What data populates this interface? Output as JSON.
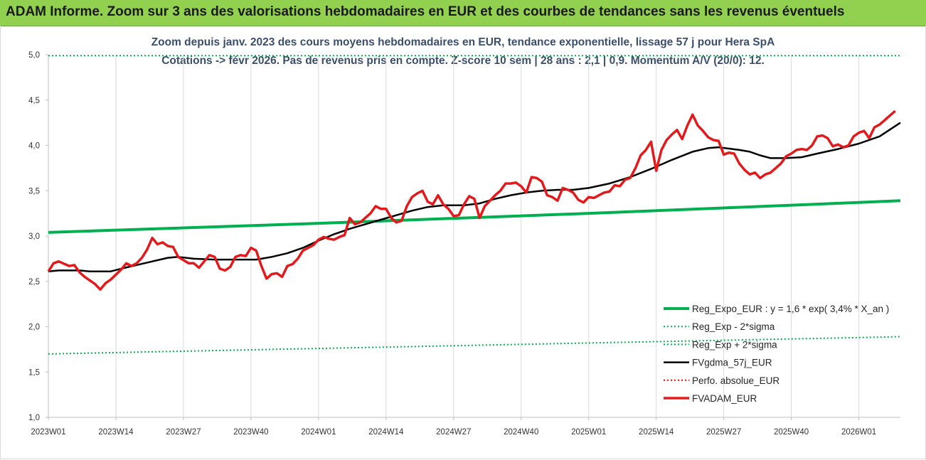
{
  "banner": {
    "title": "ADAM Informe. Zoom sur 3 ans des valorisations hebdomadaires en EUR et des courbes de tendances sans les revenus éventuels"
  },
  "colors": {
    "banner_bg": "#92d050",
    "reg_expo": "#00b050",
    "sigma": "#00b050",
    "mma": "#000000",
    "perfo": "#ff0000",
    "fvadam": "#e31a1c"
  },
  "chart_data": {
    "type": "line",
    "title_lines": [
      "Zoom depuis janv. 2023 des cours moyens hebdomadaires en EUR, tendance exponentielle, lissage 57 j pour Hera SpA",
      "Cotations -> févr 2026. Pas de revenus pris en compte. Z-score 10 sem | 28 ans : 2,1 | 0,9. Momentum A/V (20/0): 12."
    ],
    "x_tick_labels": [
      "2023W01",
      "2023W14",
      "2023W27",
      "2023W40",
      "2024W01",
      "2024W14",
      "2024W27",
      "2024W40",
      "2025W01",
      "2025W14",
      "2025W27",
      "2025W40",
      "2026W01"
    ],
    "x_tick_weeks": [
      0,
      13,
      26,
      39,
      52,
      65,
      78,
      91,
      104,
      117,
      130,
      143,
      156
    ],
    "x_range_weeks": [
      0,
      164
    ],
    "y_tick_labels": [
      "1,0",
      "1,5",
      "2,0",
      "2,5",
      "3,0",
      "3,5",
      "4,0",
      "4,5",
      "5,0"
    ],
    "ylim": [
      1.0,
      5.0
    ],
    "y_step": 0.5,
    "legend": [
      {
        "label": "Reg_Expo_EUR : y = 1,6 * exp( 3,4% *  X_an )",
        "style": "solid-thick-green"
      },
      {
        "label": "Reg_Exp - 2*sigma",
        "style": "dotted-green"
      },
      {
        "label": "Reg_Exp + 2*sigma",
        "style": "dotted-green"
      },
      {
        "label": "FVgdma_57j_EUR",
        "style": "solid-black"
      },
      {
        "label": "Perfo. absolue_EUR",
        "style": "dotted-red"
      },
      {
        "label": "FVADAM_EUR",
        "style": "solid-thick-red"
      }
    ],
    "series": [
      {
        "name": "Reg_Expo_EUR : y = 1,6 * exp( 3,4% *  X_an )",
        "color": "#00b050",
        "dash": "solid",
        "width": 4,
        "points": [
          [
            0,
            3.04
          ],
          [
            52,
            3.14
          ],
          [
            104,
            3.25
          ],
          [
            156,
            3.37
          ],
          [
            164,
            3.39
          ]
        ]
      },
      {
        "name": "Reg_Exp - 2*sigma",
        "color": "#00b050",
        "dash": "dotted",
        "width": 2,
        "points": [
          [
            0,
            1.7
          ],
          [
            52,
            1.76
          ],
          [
            104,
            1.82
          ],
          [
            156,
            1.88
          ],
          [
            164,
            1.89
          ]
        ]
      },
      {
        "name": "Reg_Exp + 2*sigma",
        "color": "#00b050",
        "dash": "dotted",
        "width": 2,
        "points": [
          [
            0,
            4.99
          ],
          [
            164,
            4.99
          ]
        ]
      },
      {
        "name": "FVgdma_57j_EUR",
        "color": "#000000",
        "dash": "solid",
        "width": 2.5,
        "points": [
          [
            0,
            2.61
          ],
          [
            2,
            2.62
          ],
          [
            6,
            2.62
          ],
          [
            8,
            2.61
          ],
          [
            12,
            2.61
          ],
          [
            14,
            2.64
          ],
          [
            17,
            2.68
          ],
          [
            20,
            2.72
          ],
          [
            23,
            2.76
          ],
          [
            25,
            2.77
          ],
          [
            28,
            2.75
          ],
          [
            32,
            2.74
          ],
          [
            36,
            2.74
          ],
          [
            40,
            2.74
          ],
          [
            43,
            2.77
          ],
          [
            46,
            2.81
          ],
          [
            49,
            2.87
          ],
          [
            52,
            2.95
          ],
          [
            55,
            3.02
          ],
          [
            58,
            3.08
          ],
          [
            61,
            3.13
          ],
          [
            64,
            3.18
          ],
          [
            67,
            3.23
          ],
          [
            70,
            3.28
          ],
          [
            73,
            3.32
          ],
          [
            76,
            3.34
          ],
          [
            80,
            3.34
          ],
          [
            83,
            3.36
          ],
          [
            86,
            3.41
          ],
          [
            89,
            3.45
          ],
          [
            92,
            3.48
          ],
          [
            95,
            3.5
          ],
          [
            98,
            3.51
          ],
          [
            101,
            3.51
          ],
          [
            104,
            3.53
          ],
          [
            108,
            3.58
          ],
          [
            112,
            3.65
          ],
          [
            116,
            3.74
          ],
          [
            120,
            3.84
          ],
          [
            124,
            3.93
          ],
          [
            127,
            3.97
          ],
          [
            129,
            3.98
          ],
          [
            133,
            3.95
          ],
          [
            135,
            3.93
          ],
          [
            137,
            3.89
          ],
          [
            139,
            3.86
          ],
          [
            142,
            3.86
          ],
          [
            145,
            3.87
          ],
          [
            148,
            3.91
          ],
          [
            152,
            3.96
          ],
          [
            156,
            4.02
          ],
          [
            160,
            4.1
          ],
          [
            164,
            4.25
          ]
        ]
      },
      {
        "name": "FVADAM_EUR",
        "color": "#e31a1c",
        "dash": "solid",
        "width": 3.5,
        "points": [
          [
            0,
            2.61
          ],
          [
            1,
            2.7
          ],
          [
            2,
            2.72
          ],
          [
            4,
            2.67
          ],
          [
            5,
            2.68
          ],
          [
            6,
            2.6
          ],
          [
            7,
            2.55
          ],
          [
            9,
            2.47
          ],
          [
            10,
            2.41
          ],
          [
            11,
            2.48
          ],
          [
            12,
            2.52
          ],
          [
            14,
            2.63
          ],
          [
            15,
            2.7
          ],
          [
            16,
            2.67
          ],
          [
            17,
            2.7
          ],
          [
            18,
            2.76
          ],
          [
            19,
            2.85
          ],
          [
            20,
            2.98
          ],
          [
            21,
            2.91
          ],
          [
            22,
            2.93
          ],
          [
            23,
            2.89
          ],
          [
            24,
            2.88
          ],
          [
            25,
            2.77
          ],
          [
            27,
            2.7
          ],
          [
            28,
            2.7
          ],
          [
            29,
            2.65
          ],
          [
            30,
            2.72
          ],
          [
            31,
            2.79
          ],
          [
            32,
            2.77
          ],
          [
            33,
            2.64
          ],
          [
            34,
            2.62
          ],
          [
            35,
            2.66
          ],
          [
            36,
            2.77
          ],
          [
            37,
            2.79
          ],
          [
            38,
            2.78
          ],
          [
            39,
            2.87
          ],
          [
            40,
            2.84
          ],
          [
            41,
            2.67
          ],
          [
            42,
            2.53
          ],
          [
            43,
            2.58
          ],
          [
            44,
            2.59
          ],
          [
            45,
            2.55
          ],
          [
            46,
            2.67
          ],
          [
            47,
            2.69
          ],
          [
            48,
            2.75
          ],
          [
            49,
            2.84
          ],
          [
            51,
            2.9
          ],
          [
            52,
            2.96
          ],
          [
            53,
            2.99
          ],
          [
            54,
            2.97
          ],
          [
            55,
            2.96
          ],
          [
            56,
            2.99
          ],
          [
            57,
            3.01
          ],
          [
            58,
            3.2
          ],
          [
            59,
            3.13
          ],
          [
            60,
            3.15
          ],
          [
            61,
            3.2
          ],
          [
            62,
            3.25
          ],
          [
            63,
            3.33
          ],
          [
            64,
            3.3
          ],
          [
            65,
            3.3
          ],
          [
            66,
            3.2
          ],
          [
            67,
            3.15
          ],
          [
            68,
            3.17
          ],
          [
            69,
            3.33
          ],
          [
            70,
            3.43
          ],
          [
            71,
            3.47
          ],
          [
            72,
            3.5
          ],
          [
            73,
            3.38
          ],
          [
            74,
            3.35
          ],
          [
            75,
            3.45
          ],
          [
            76,
            3.35
          ],
          [
            77,
            3.3
          ],
          [
            78,
            3.22
          ],
          [
            79,
            3.23
          ],
          [
            80,
            3.35
          ],
          [
            81,
            3.44
          ],
          [
            82,
            3.41
          ],
          [
            83,
            3.2
          ],
          [
            84,
            3.33
          ],
          [
            85,
            3.39
          ],
          [
            86,
            3.45
          ],
          [
            87,
            3.5
          ],
          [
            88,
            3.58
          ],
          [
            89,
            3.58
          ],
          [
            90,
            3.59
          ],
          [
            91,
            3.55
          ],
          [
            92,
            3.48
          ],
          [
            93,
            3.65
          ],
          [
            94,
            3.64
          ],
          [
            95,
            3.6
          ],
          [
            96,
            3.45
          ],
          [
            97,
            3.43
          ],
          [
            98,
            3.39
          ],
          [
            99,
            3.53
          ],
          [
            100,
            3.51
          ],
          [
            101,
            3.48
          ],
          [
            102,
            3.4
          ],
          [
            103,
            3.37
          ],
          [
            104,
            3.43
          ],
          [
            105,
            3.42
          ],
          [
            106,
            3.45
          ],
          [
            107,
            3.48
          ],
          [
            108,
            3.49
          ],
          [
            109,
            3.56
          ],
          [
            110,
            3.55
          ],
          [
            111,
            3.62
          ],
          [
            112,
            3.64
          ],
          [
            113,
            3.75
          ],
          [
            114,
            3.89
          ],
          [
            115,
            3.95
          ],
          [
            116,
            4.04
          ],
          [
            117,
            3.72
          ],
          [
            118,
            3.95
          ],
          [
            119,
            4.06
          ],
          [
            120,
            4.12
          ],
          [
            121,
            4.17
          ],
          [
            122,
            4.07
          ],
          [
            123,
            4.22
          ],
          [
            124,
            4.34
          ],
          [
            125,
            4.22
          ],
          [
            126,
            4.16
          ],
          [
            127,
            4.09
          ],
          [
            128,
            4.06
          ],
          [
            129,
            4.05
          ],
          [
            130,
            3.9
          ],
          [
            131,
            3.92
          ],
          [
            132,
            3.91
          ],
          [
            133,
            3.8
          ],
          [
            134,
            3.73
          ],
          [
            135,
            3.68
          ],
          [
            136,
            3.7
          ],
          [
            137,
            3.64
          ],
          [
            138,
            3.68
          ],
          [
            139,
            3.7
          ],
          [
            140,
            3.75
          ],
          [
            141,
            3.8
          ],
          [
            142,
            3.88
          ],
          [
            143,
            3.91
          ],
          [
            144,
            3.95
          ],
          [
            145,
            3.96
          ],
          [
            146,
            3.95
          ],
          [
            147,
            4.0
          ],
          [
            148,
            4.1
          ],
          [
            149,
            4.11
          ],
          [
            150,
            4.08
          ],
          [
            151,
            3.99
          ],
          [
            152,
            4.01
          ],
          [
            153,
            3.98
          ],
          [
            154,
            4.0
          ],
          [
            155,
            4.1
          ],
          [
            156,
            4.14
          ],
          [
            157,
            4.16
          ],
          [
            158,
            4.08
          ],
          [
            159,
            4.2
          ],
          [
            160,
            4.23
          ],
          [
            161,
            4.28
          ],
          [
            162,
            4.33
          ],
          [
            163,
            4.38
          ]
        ]
      }
    ]
  }
}
